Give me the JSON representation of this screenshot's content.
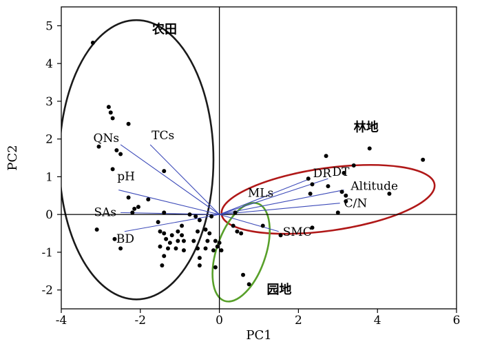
{
  "chart_data": {
    "type": "scatter",
    "title": "",
    "xlabel": "PC1",
    "ylabel": "PC2",
    "xlim": [
      -4,
      6
    ],
    "ylim": [
      -2.5,
      5.5
    ],
    "xticks": [
      "-4",
      "-2",
      "0",
      "2",
      "4",
      "6"
    ],
    "yticks": [
      "-2",
      "-1",
      "0",
      "1",
      "2",
      "3",
      "4",
      "5"
    ],
    "xtick_values": [
      -4,
      -2,
      0,
      2,
      4,
      6
    ],
    "ytick_values": [
      -2,
      -1,
      0,
      1,
      2,
      3,
      4,
      5
    ],
    "points": [
      [
        -3.2,
        4.55
      ],
      [
        -2.8,
        2.85
      ],
      [
        -2.75,
        2.7
      ],
      [
        -2.7,
        2.55
      ],
      [
        -2.3,
        2.4
      ],
      [
        -3.05,
        1.8
      ],
      [
        -2.6,
        1.7
      ],
      [
        -2.5,
        1.6
      ],
      [
        -2.7,
        1.2
      ],
      [
        -1.4,
        1.15
      ],
      [
        -2.3,
        0.45
      ],
      [
        -1.8,
        0.4
      ],
      [
        -2.05,
        0.2
      ],
      [
        -2.15,
        0.15
      ],
      [
        -2.2,
        0.05
      ],
      [
        -1.4,
        0.05
      ],
      [
        -0.75,
        0.0
      ],
      [
        -0.6,
        -0.05
      ],
      [
        -0.2,
        -0.05
      ],
      [
        -1.55,
        -0.2
      ],
      [
        -0.95,
        -0.3
      ],
      [
        -0.5,
        -0.15
      ],
      [
        -3.1,
        -0.4
      ],
      [
        -2.65,
        -0.65
      ],
      [
        -2.5,
        -0.9
      ],
      [
        -1.5,
        -0.45
      ],
      [
        -1.4,
        -0.5
      ],
      [
        -1.2,
        -0.55
      ],
      [
        -1.05,
        -0.45
      ],
      [
        -0.95,
        -0.55
      ],
      [
        -0.55,
        -0.45
      ],
      [
        -0.35,
        -0.4
      ],
      [
        -0.25,
        -0.5
      ],
      [
        -1.35,
        -0.65
      ],
      [
        -1.25,
        -0.75
      ],
      [
        -1.05,
        -0.7
      ],
      [
        -0.9,
        -0.7
      ],
      [
        -0.65,
        -0.7
      ],
      [
        -0.3,
        -0.7
      ],
      [
        -0.1,
        -0.7
      ],
      [
        -0.05,
        -0.85
      ],
      [
        0.0,
        -0.75
      ],
      [
        -1.5,
        -0.85
      ],
      [
        -1.3,
        -0.9
      ],
      [
        -1.1,
        -0.9
      ],
      [
        -0.9,
        -0.95
      ],
      [
        -0.55,
        -0.9
      ],
      [
        -0.35,
        -0.9
      ],
      [
        -0.15,
        -0.95
      ],
      [
        0.05,
        -0.95
      ],
      [
        -1.4,
        -1.1
      ],
      [
        -0.5,
        -1.15
      ],
      [
        -1.45,
        -1.35
      ],
      [
        -0.5,
        -1.35
      ],
      [
        -0.1,
        -1.4
      ],
      [
        0.35,
        -0.3
      ],
      [
        0.45,
        -0.45
      ],
      [
        0.55,
        -0.5
      ],
      [
        1.1,
        -0.3
      ],
      [
        1.55,
        -0.55
      ],
      [
        0.6,
        -1.6
      ],
      [
        0.75,
        -1.85
      ],
      [
        2.35,
        -0.35
      ],
      [
        0.4,
        0.05
      ],
      [
        2.7,
        1.55
      ],
      [
        3.4,
        1.3
      ],
      [
        3.15,
        1.1
      ],
      [
        2.25,
        0.95
      ],
      [
        2.35,
        0.8
      ],
      [
        2.75,
        0.75
      ],
      [
        3.1,
        0.6
      ],
      [
        3.2,
        0.5
      ],
      [
        2.3,
        0.55
      ],
      [
        3.2,
        0.35
      ],
      [
        3.0,
        0.05
      ],
      [
        3.8,
        1.75
      ],
      [
        4.3,
        0.55
      ],
      [
        5.15,
        1.45
      ]
    ],
    "vectors": [
      {
        "label": "QNs",
        "x": -2.5,
        "y": 1.85
      },
      {
        "label": "TCs",
        "x": -1.75,
        "y": 1.85
      },
      {
        "label": "pH",
        "x": -2.55,
        "y": 0.65
      },
      {
        "label": "SAs",
        "x": -2.5,
        "y": 0.05
      },
      {
        "label": "BD",
        "x": -2.4,
        "y": -0.45
      },
      {
        "label": "MLs",
        "x": 0.3,
        "y": 0.1
      },
      {
        "label": "DR",
        "x": 2.3,
        "y": 0.95
      },
      {
        "label": "DT",
        "x": 2.75,
        "y": 0.95
      },
      {
        "label": "Altitude",
        "x": 3.15,
        "y": 0.65
      },
      {
        "label": "C/N",
        "x": 3.05,
        "y": 0.3
      },
      {
        "label": "SMC",
        "x": 1.5,
        "y": -0.45
      }
    ],
    "groups": [
      {
        "name": "农田",
        "color": "#1a1a1a",
        "cx": -2.1,
        "cy": 1.45,
        "rx": 1.95,
        "ry": 3.7,
        "angle": 0
      },
      {
        "name": "林地",
        "color": "#b01818",
        "cx": 2.75,
        "cy": 0.4,
        "rx": 2.72,
        "ry": 0.83,
        "angle": 8
      },
      {
        "name": "园地",
        "color": "#58a02a",
        "cx": 0.55,
        "cy": -1.0,
        "rx": 1.3,
        "ry": 0.65,
        "angle": 71
      }
    ]
  }
}
